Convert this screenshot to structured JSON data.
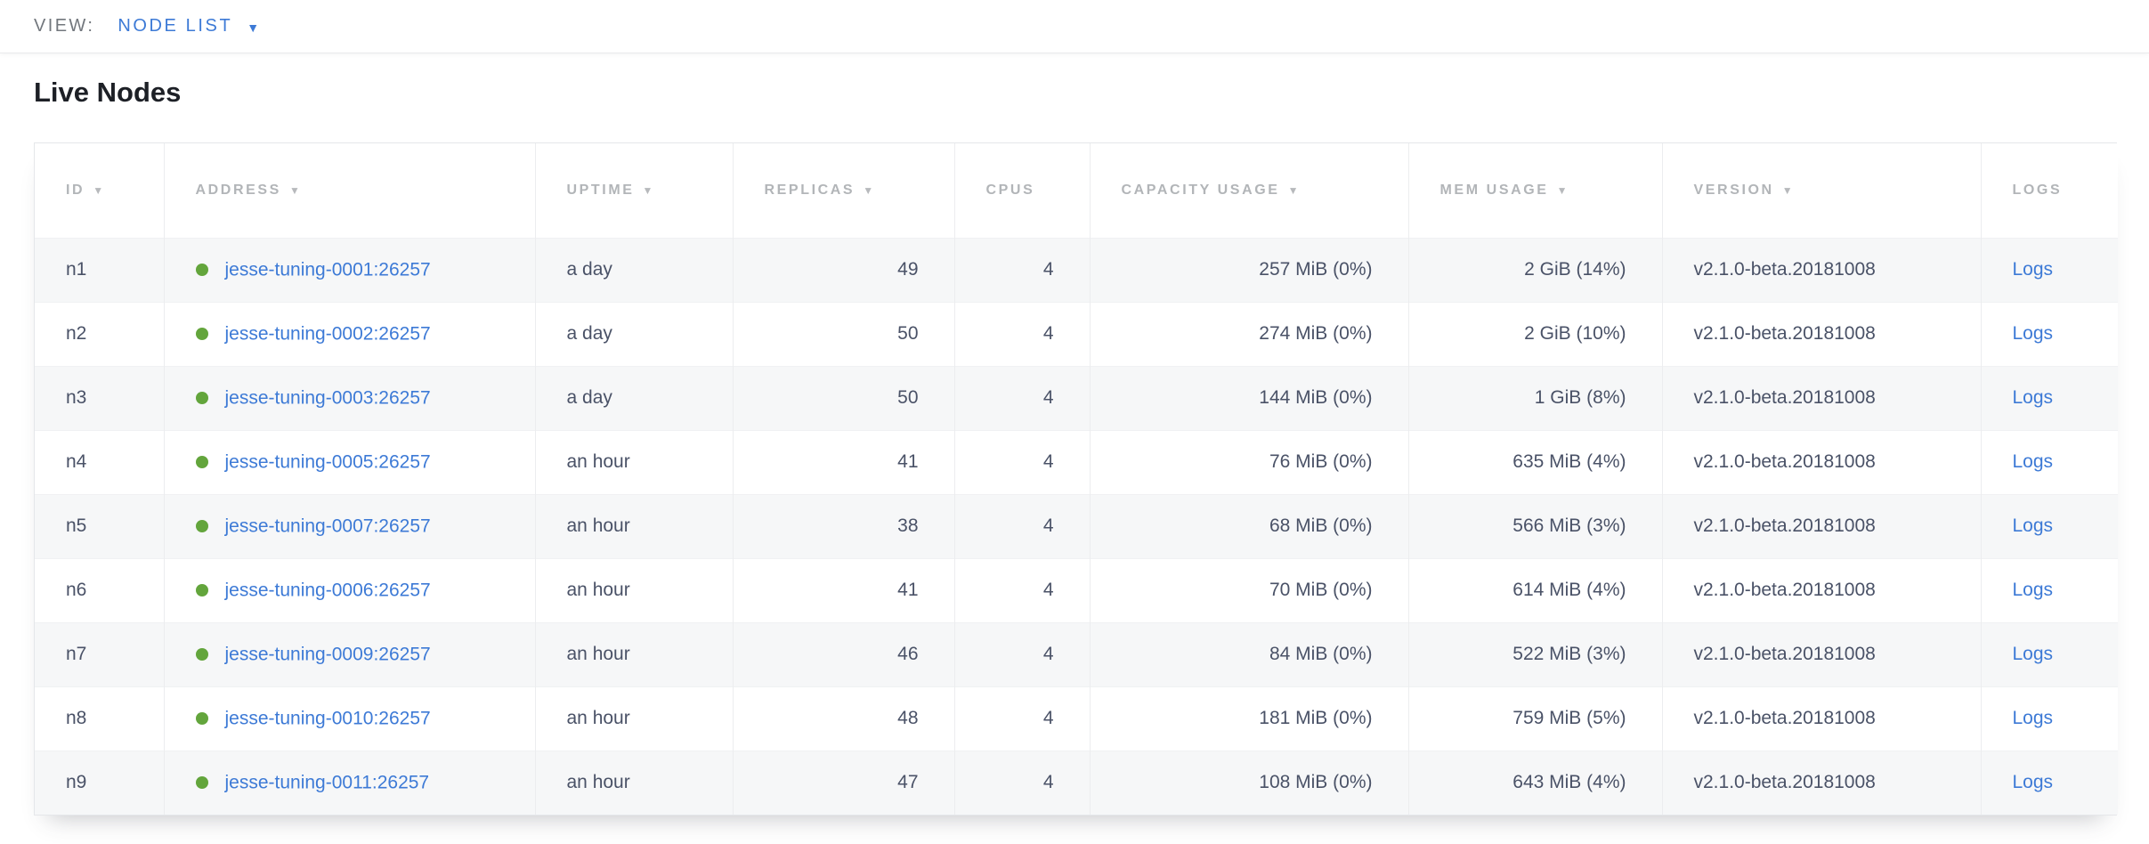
{
  "view_bar": {
    "label": "VIEW:",
    "selected": "NODE LIST"
  },
  "page": {
    "title": "Live Nodes"
  },
  "icons": {
    "sort_desc": "▼",
    "dropdown_caret": "▼",
    "status_dot": "●"
  },
  "colors": {
    "link": "#3d7ad6",
    "status_healthy": "#63a53c"
  },
  "table": {
    "columns": [
      {
        "key": "id",
        "label": "ID",
        "sortable": true,
        "align": "left"
      },
      {
        "key": "address",
        "label": "ADDRESS",
        "sortable": true,
        "align": "left"
      },
      {
        "key": "uptime",
        "label": "UPTIME",
        "sortable": true,
        "align": "left"
      },
      {
        "key": "replicas",
        "label": "REPLICAS",
        "sortable": true,
        "align": "right"
      },
      {
        "key": "cpus",
        "label": "CPUS",
        "sortable": false,
        "align": "right"
      },
      {
        "key": "capacity",
        "label": "CAPACITY USAGE",
        "sortable": true,
        "align": "right"
      },
      {
        "key": "mem",
        "label": "MEM USAGE",
        "sortable": true,
        "align": "right"
      },
      {
        "key": "version",
        "label": "VERSION",
        "sortable": true,
        "align": "left"
      },
      {
        "key": "logs",
        "label": "LOGS",
        "sortable": false,
        "align": "left"
      }
    ],
    "rows": [
      {
        "id": "n1",
        "status": "healthy",
        "address": "jesse-tuning-0001:26257",
        "uptime": "a day",
        "replicas": "49",
        "cpus": "4",
        "capacity": "257 MiB (0%)",
        "mem": "2 GiB (14%)",
        "version": "v2.1.0-beta.20181008",
        "logs": "Logs"
      },
      {
        "id": "n2",
        "status": "healthy",
        "address": "jesse-tuning-0002:26257",
        "uptime": "a day",
        "replicas": "50",
        "cpus": "4",
        "capacity": "274 MiB (0%)",
        "mem": "2 GiB (10%)",
        "version": "v2.1.0-beta.20181008",
        "logs": "Logs"
      },
      {
        "id": "n3",
        "status": "healthy",
        "address": "jesse-tuning-0003:26257",
        "uptime": "a day",
        "replicas": "50",
        "cpus": "4",
        "capacity": "144 MiB (0%)",
        "mem": "1 GiB (8%)",
        "version": "v2.1.0-beta.20181008",
        "logs": "Logs"
      },
      {
        "id": "n4",
        "status": "healthy",
        "address": "jesse-tuning-0005:26257",
        "uptime": "an hour",
        "replicas": "41",
        "cpus": "4",
        "capacity": "76 MiB (0%)",
        "mem": "635 MiB (4%)",
        "version": "v2.1.0-beta.20181008",
        "logs": "Logs"
      },
      {
        "id": "n5",
        "status": "healthy",
        "address": "jesse-tuning-0007:26257",
        "uptime": "an hour",
        "replicas": "38",
        "cpus": "4",
        "capacity": "68 MiB (0%)",
        "mem": "566 MiB (3%)",
        "version": "v2.1.0-beta.20181008",
        "logs": "Logs"
      },
      {
        "id": "n6",
        "status": "healthy",
        "address": "jesse-tuning-0006:26257",
        "uptime": "an hour",
        "replicas": "41",
        "cpus": "4",
        "capacity": "70 MiB (0%)",
        "mem": "614 MiB (4%)",
        "version": "v2.1.0-beta.20181008",
        "logs": "Logs"
      },
      {
        "id": "n7",
        "status": "healthy",
        "address": "jesse-tuning-0009:26257",
        "uptime": "an hour",
        "replicas": "46",
        "cpus": "4",
        "capacity": "84 MiB (0%)",
        "mem": "522 MiB (3%)",
        "version": "v2.1.0-beta.20181008",
        "logs": "Logs"
      },
      {
        "id": "n8",
        "status": "healthy",
        "address": "jesse-tuning-0010:26257",
        "uptime": "an hour",
        "replicas": "48",
        "cpus": "4",
        "capacity": "181 MiB (0%)",
        "mem": "759 MiB (5%)",
        "version": "v2.1.0-beta.20181008",
        "logs": "Logs"
      },
      {
        "id": "n9",
        "status": "healthy",
        "address": "jesse-tuning-0011:26257",
        "uptime": "an hour",
        "replicas": "47",
        "cpus": "4",
        "capacity": "108 MiB (0%)",
        "mem": "643 MiB (4%)",
        "version": "v2.1.0-beta.20181008",
        "logs": "Logs"
      }
    ]
  }
}
